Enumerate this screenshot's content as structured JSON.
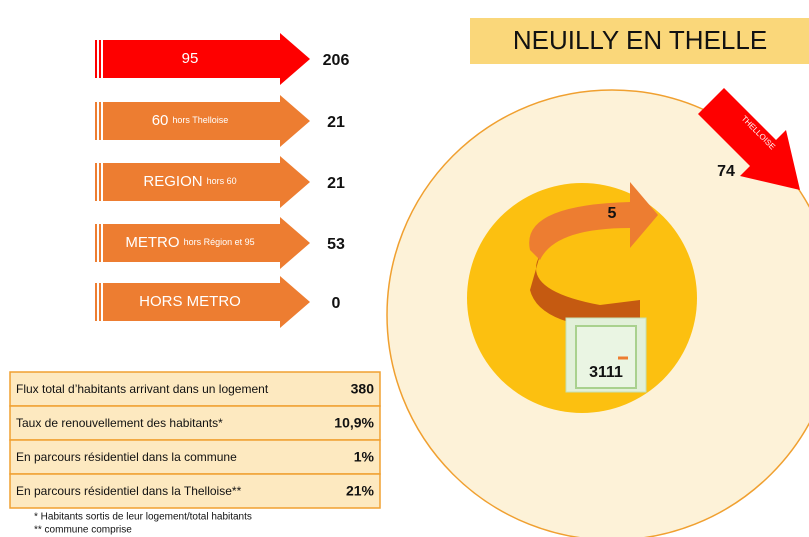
{
  "title": "NEUILLY EN THELLE",
  "arrows": [
    {
      "label": "95",
      "sublabel": "",
      "value": "206",
      "color": "#fe0000"
    },
    {
      "label": "60",
      "sublabel": "hors Thelloise",
      "value": "21",
      "color": "#ed7d31"
    },
    {
      "label": "REGION",
      "sublabel": "hors 60",
      "value": "21",
      "color": "#ed7d31"
    },
    {
      "label": "METRO",
      "sublabel": "hors Région et 95",
      "value": "53",
      "color": "#ed7d31"
    },
    {
      "label": "HORS METRO",
      "sublabel": "",
      "value": "0",
      "color": "#ed7d31"
    }
  ],
  "table": {
    "rows": [
      [
        "Flux total d’habitants arrivant dans un logement",
        "380"
      ],
      [
        "Taux de renouvellement des habitants*",
        "10,9%"
      ],
      [
        "En parcours résidentiel dans la commune",
        "1%"
      ],
      [
        "En parcours résidentiel dans la Thelloise**",
        "21%"
      ]
    ]
  },
  "notes": [
    "* Habitants sortis de leur logement/total habitants",
    "** commune comprise"
  ],
  "commune": {
    "loop_value": "5",
    "door_value": "3111"
  },
  "thelloise": {
    "label": "THELLOISE",
    "value": "74"
  }
}
